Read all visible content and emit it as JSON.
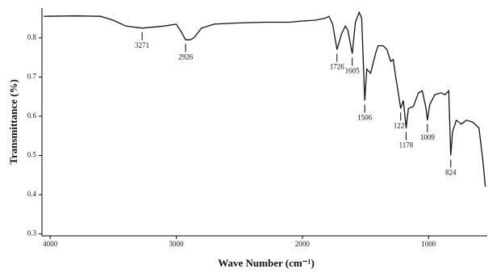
{
  "chart_data": {
    "type": "line",
    "x_label": "Wave Number (cm⁻¹)",
    "y_label": "Transmittance (%)",
    "xlim": [
      4065,
      535
    ],
    "ylim": [
      0.295,
      0.876
    ],
    "xticks": [
      4000,
      3000,
      2000,
      1000
    ],
    "yticks": [
      0.3,
      0.4,
      0.5,
      0.6,
      0.7,
      0.8
    ],
    "color": "#111111",
    "x": [
      4050,
      3800,
      3600,
      3500,
      3400,
      3271,
      3100,
      3000,
      2960,
      2926,
      2890,
      2860,
      2800,
      2700,
      2500,
      2300,
      2100,
      2000,
      1900,
      1820,
      1790,
      1760,
      1726,
      1690,
      1660,
      1640,
      1605,
      1580,
      1550,
      1530,
      1506,
      1490,
      1460,
      1420,
      1400,
      1360,
      1330,
      1300,
      1280,
      1260,
      1240,
      1221,
      1200,
      1190,
      1178,
      1160,
      1120,
      1080,
      1050,
      1020,
      1009,
      990,
      950,
      900,
      870,
      840,
      824,
      810,
      780,
      740,
      700,
      650,
      600,
      570,
      550
    ],
    "series": [
      {
        "name": "spectrum",
        "values": [
          0.855,
          0.856,
          0.855,
          0.845,
          0.83,
          0.825,
          0.83,
          0.835,
          0.815,
          0.795,
          0.795,
          0.8,
          0.825,
          0.835,
          0.838,
          0.84,
          0.84,
          0.843,
          0.845,
          0.85,
          0.855,
          0.835,
          0.77,
          0.81,
          0.83,
          0.82,
          0.76,
          0.84,
          0.865,
          0.85,
          0.64,
          0.72,
          0.71,
          0.76,
          0.78,
          0.78,
          0.77,
          0.74,
          0.745,
          0.7,
          0.66,
          0.62,
          0.64,
          0.61,
          0.57,
          0.62,
          0.625,
          0.66,
          0.665,
          0.62,
          0.59,
          0.63,
          0.655,
          0.66,
          0.655,
          0.665,
          0.5,
          0.56,
          0.59,
          0.58,
          0.59,
          0.585,
          0.57,
          0.49,
          0.42
        ]
      }
    ],
    "peaks": [
      3271,
      2926,
      1726,
      1605,
      1506,
      1221,
      1178,
      1009,
      824
    ]
  }
}
